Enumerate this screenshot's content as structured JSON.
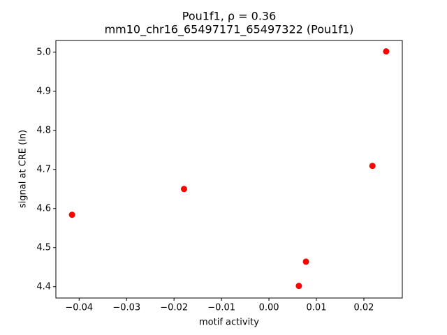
{
  "chart_data": {
    "type": "scatter",
    "title": "Pou1f1, ρ = 0.36",
    "subtitle": "mm10_chr16_65497171_65497322 (Pou1f1)",
    "x_label": "motif activity",
    "y_label": "signal at CRE (ln)",
    "series": [
      {
        "color": "#ff0000",
        "x": [
          -0.0415,
          -0.0179,
          0.0063,
          0.0078,
          0.0218,
          0.0247
        ],
        "values": [
          4.584,
          4.65,
          4.402,
          4.464,
          4.709,
          5.002
        ]
      }
    ],
    "xlim": [
      -0.0449,
      0.0281
    ],
    "ylim": [
      4.371,
      5.03
    ],
    "xticks": [
      {
        "value": -0.04,
        "label": "−0.04"
      },
      {
        "value": -0.03,
        "label": "−0.03"
      },
      {
        "value": -0.02,
        "label": "−0.02"
      },
      {
        "value": -0.01,
        "label": "−0.01"
      },
      {
        "value": 0,
        "label": "0.00"
      },
      0.01,
      0.02
    ],
    "yticks": [
      4.4,
      4.5,
      4.6,
      4.7,
      4.8,
      4.9,
      {
        "value": 5,
        "label": "5.0"
      }
    ],
    "grid": false
  }
}
